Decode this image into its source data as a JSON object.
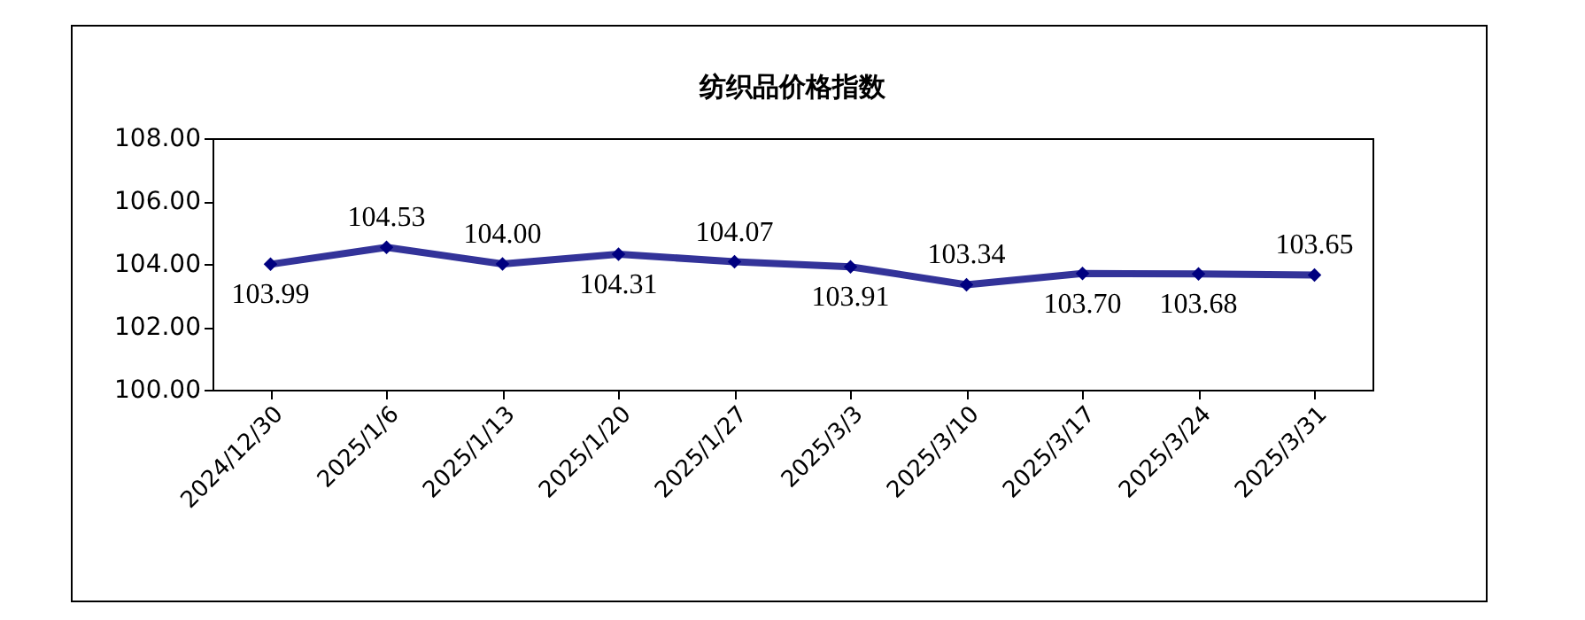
{
  "chart_data": {
    "type": "line",
    "title": "纺织品价格指数",
    "categories": [
      "2024/12/30",
      "2025/1/6",
      "2025/1/13",
      "2025/1/20",
      "2025/1/27",
      "2025/3/3",
      "2025/3/10",
      "2025/3/17",
      "2025/3/24",
      "2025/3/31"
    ],
    "series": [
      {
        "color": "#333399",
        "values": [
          103.99,
          104.53,
          104.0,
          104.31,
          104.07,
          103.91,
          103.34,
          103.7,
          103.68,
          103.65
        ],
        "value_labels": [
          "103.99",
          "104.53",
          "104.00",
          "104.31",
          "104.07",
          "103.91",
          "103.34",
          "103.70",
          "103.68",
          "103.65"
        ]
      }
    ],
    "ylim": [
      100,
      108
    ],
    "yticks": [
      {
        "value": 100,
        "label": "100.00"
      },
      {
        "value": 102,
        "label": "102.00"
      },
      {
        "value": 104,
        "label": "104.00"
      },
      {
        "value": 106,
        "label": "106.00"
      },
      {
        "value": 108,
        "label": "108.00"
      }
    ],
    "grid": false,
    "legend": false,
    "marker": "diamond",
    "line_style": "solid"
  }
}
